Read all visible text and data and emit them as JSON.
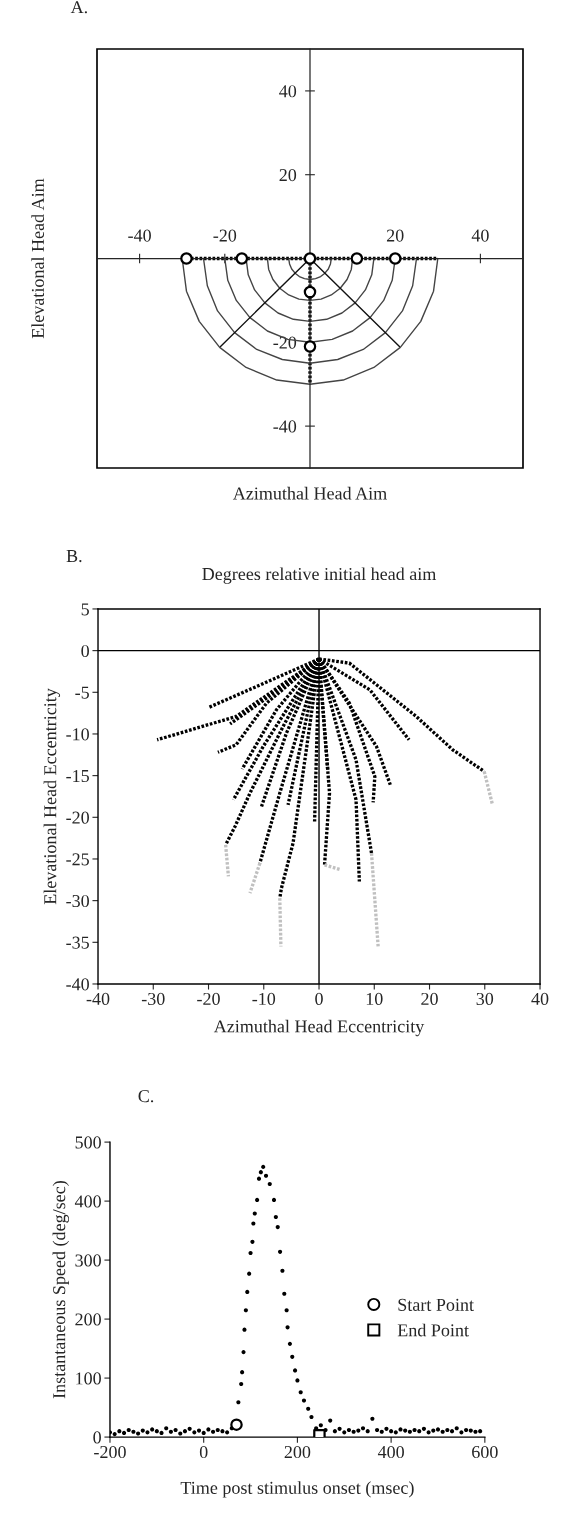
{
  "chart_data": [
    {
      "type": "line",
      "title": "A.",
      "xlabel": "Azimuthal Head Aim",
      "ylabel": "Elevational Head Aim",
      "xlim": [
        -50,
        50
      ],
      "ylim": [
        -50,
        50
      ],
      "xticks": [
        -40,
        -20,
        20,
        40
      ],
      "yticks": [
        -40,
        -20,
        20,
        40
      ],
      "grid": false,
      "legend": false,
      "series": [
        {
          "color": "#000000",
          "line_style": "dotted",
          "x": [
            -30,
            30
          ],
          "values": [
            0,
            0
          ]
        },
        {
          "color": "#000000",
          "line_style": "dotted",
          "x": [
            0,
            0
          ],
          "values": [
            0,
            -30
          ]
        },
        {
          "color": "#444444",
          "x": [
            -5,
            -4.8,
            -4.3,
            -3.5,
            -2.5,
            -1.3,
            0,
            1.3,
            2.5,
            3.5,
            4.3,
            4.8,
            5
          ],
          "values": [
            0,
            -1.3,
            -2.5,
            -3.5,
            -4.3,
            -4.8,
            -5,
            -4.8,
            -4.3,
            -3.5,
            -2.5,
            -1.3,
            0
          ]
        },
        {
          "color": "#444444",
          "x": [
            -10,
            -9.7,
            -8.7,
            -7.1,
            -5,
            -2.6,
            0,
            2.6,
            5,
            7.1,
            8.7,
            9.7,
            10
          ],
          "values": [
            0,
            -2.6,
            -5,
            -7.1,
            -8.7,
            -9.7,
            -10,
            -9.7,
            -8.7,
            -7.1,
            -5,
            -2.6,
            0
          ]
        },
        {
          "color": "#444444",
          "x": [
            -15,
            -14.5,
            -13,
            -10.6,
            -7.5,
            -3.9,
            0,
            3.9,
            7.5,
            10.6,
            13,
            14.5,
            15
          ],
          "values": [
            0,
            -3.9,
            -7.5,
            -10.6,
            -13,
            -14.5,
            -15,
            -14.5,
            -13,
            -10.6,
            -7.5,
            -3.9,
            0
          ]
        },
        {
          "color": "#444444",
          "x": [
            -20,
            -19.3,
            -17.3,
            -14.1,
            -10,
            -5.2,
            0,
            5.2,
            10,
            14.1,
            17.3,
            19.3,
            20
          ],
          "values": [
            0,
            -5.2,
            -10,
            -14.1,
            -17.3,
            -19.3,
            -20,
            -19.3,
            -17.3,
            -14.1,
            -10,
            -5.2,
            0
          ]
        },
        {
          "color": "#444444",
          "x": [
            -25,
            -24.1,
            -21.7,
            -17.7,
            -12.5,
            -6.5,
            0,
            6.5,
            12.5,
            17.7,
            21.7,
            24.1,
            25
          ],
          "values": [
            0,
            -6.5,
            -12.5,
            -17.7,
            -21.7,
            -24.1,
            -25,
            -24.1,
            -21.7,
            -17.7,
            -12.5,
            -6.5,
            0
          ]
        },
        {
          "color": "#444444",
          "x": [
            -30,
            -29,
            -26,
            -21.2,
            -15,
            -7.8,
            0,
            7.8,
            15,
            21.2,
            26,
            29,
            30
          ],
          "values": [
            0,
            -7.8,
            -15,
            -21.2,
            -26,
            -29,
            -30,
            -29,
            -26,
            -21.2,
            -15,
            -7.8,
            0
          ]
        },
        {
          "color": "#111111",
          "x": [
            0,
            -21
          ],
          "values": [
            0,
            -21
          ]
        },
        {
          "color": "#111111",
          "x": [
            0,
            21
          ],
          "values": [
            0,
            -21
          ]
        },
        {
          "type": "scatter",
          "marker": "circle",
          "color": "#000000",
          "x": [
            -29,
            -16,
            0,
            11,
            20,
            0,
            0
          ],
          "values": [
            0,
            0,
            0,
            0,
            0,
            -8,
            -21
          ]
        }
      ]
    },
    {
      "type": "line",
      "title": "B.",
      "subtitle": "Degrees relative initial head aim",
      "xlabel": "Azimuthal Head Eccentricity",
      "ylabel": "Elevational Head Eccentricity",
      "xlim": [
        -40,
        40
      ],
      "ylim": [
        -40,
        5
      ],
      "xticks": [
        -40,
        -30,
        -20,
        -10,
        0,
        10,
        20,
        30,
        40
      ],
      "yticks": [
        5,
        0,
        -5,
        -10,
        -15,
        -20,
        -25,
        -30,
        -35,
        -40
      ],
      "grid": false,
      "legend": false,
      "line_style": "dotted",
      "series": [
        {
          "color": "#000000",
          "line_style": "solid",
          "x": [
            0,
            0
          ],
          "values": [
            5,
            -40
          ]
        },
        {
          "color": "#000000",
          "line_style": "solid",
          "x": [
            -40,
            40
          ],
          "values": [
            0,
            0
          ]
        },
        {
          "color": "#000000",
          "x": [
            0,
            -15,
            -29.3
          ],
          "values": [
            -1,
            -7.9,
            -10.7
          ]
        },
        {
          "color": "#000000",
          "x": [
            0,
            -11.3,
            -19.9
          ],
          "values": [
            -1,
            -4.3,
            -6.8
          ]
        },
        {
          "color": "#000000",
          "x": [
            0,
            -8,
            -16.1
          ],
          "values": [
            -1,
            -5,
            -8.8
          ]
        },
        {
          "color": "#000000",
          "x": [
            0,
            -9.5,
            -15,
            -18.3
          ],
          "values": [
            -1,
            -6.3,
            -11.3,
            -12.2
          ]
        },
        {
          "color": "#000000",
          "x": [
            0,
            -7.7,
            -13.9
          ],
          "values": [
            -1,
            -7.1,
            -14.2
          ]
        },
        {
          "color": "#000000",
          "x": [
            0,
            -10.1,
            -15.5
          ],
          "values": [
            -1,
            -11.5,
            -17.9
          ]
        },
        {
          "color": "#000000",
          "x": [
            0,
            -6.5,
            -12.5,
            -15.2,
            -16.9
          ],
          "values": [
            -1,
            -9.1,
            -17.1,
            -21.1,
            -23.3
          ]
        },
        {
          "color": "#000000",
          "x": [
            0,
            -5.9,
            -10.4
          ],
          "values": [
            -1,
            -9.9,
            -18.7
          ]
        },
        {
          "color": "#000000",
          "x": [
            0,
            -5.6
          ],
          "values": [
            -1,
            -18.5
          ]
        },
        {
          "color": "#000000",
          "x": [
            0,
            -7.1,
            -10.7
          ],
          "values": [
            -1,
            -17.1,
            -25.5
          ]
        },
        {
          "color": "#000000",
          "x": [
            0,
            -1.7,
            -4.7,
            -6.8,
            -7.1
          ],
          "values": [
            -1,
            -9.1,
            -23.1,
            -28.5,
            -29.7
          ]
        },
        {
          "color": "#000000",
          "x": [
            0,
            -0.8
          ],
          "values": [
            -1,
            -20.5
          ]
        },
        {
          "color": "#000000",
          "x": [
            0,
            1.6
          ],
          "values": [
            -1,
            -14.5
          ]
        },
        {
          "color": "#000000",
          "x": [
            0,
            1.9,
            1.0
          ],
          "values": [
            -1,
            -17.1,
            -25.7
          ]
        },
        {
          "color": "#000000",
          "x": [
            0,
            6.7,
            7.3
          ],
          "values": [
            -1,
            -17.9,
            -27.7
          ]
        },
        {
          "color": "#000000",
          "x": [
            0,
            6.7,
            9.5
          ],
          "values": [
            -1,
            -13.1,
            -24.3
          ]
        },
        {
          "color": "#000000",
          "x": [
            0,
            5.5,
            10.1,
            9.8
          ],
          "values": [
            -1,
            -6.3,
            -15.1,
            -18.2
          ]
        },
        {
          "color": "#000000",
          "x": [
            0,
            10.4,
            12.9
          ],
          "values": [
            -1,
            -11.5,
            -16.1
          ]
        },
        {
          "color": "#000000",
          "x": [
            0,
            9.2,
            16.3
          ],
          "values": [
            -1,
            -4.7,
            -10.7
          ]
        },
        {
          "color": "#000000",
          "x": [
            0,
            5.5,
            17.6,
            24.2,
            29.9
          ],
          "values": [
            -1,
            -1.5,
            -7.9,
            -11.9,
            -14.5
          ]
        },
        {
          "color": "#c0c0c0",
          "x": [
            -16.9,
            -16.4
          ],
          "values": [
            -23.3,
            -27.1
          ]
        },
        {
          "color": "#c0c0c0",
          "x": [
            -10.7,
            -12.5
          ],
          "values": [
            -25.5,
            -29.1
          ]
        },
        {
          "color": "#c0c0c0",
          "x": [
            -7.1,
            -6.9
          ],
          "values": [
            -29.7,
            -35.5
          ]
        },
        {
          "color": "#c0c0c0",
          "x": [
            1.0,
            4.0
          ],
          "values": [
            -25.7,
            -26.3
          ]
        },
        {
          "color": "#c0c0c0",
          "x": [
            9.5,
            10.7
          ],
          "values": [
            -24.3,
            -35.5
          ]
        },
        {
          "color": "#c0c0c0",
          "x": [
            29.9,
            31.4
          ],
          "values": [
            -14.5,
            -18.5
          ]
        }
      ]
    },
    {
      "type": "scatter",
      "title": "C.",
      "xlabel": "Time post stimulus onset (msec)",
      "ylabel": "Instantaneous Speed (deg/sec)",
      "xlim": [
        -200,
        600
      ],
      "ylim": [
        0,
        500
      ],
      "xticks": [
        -200,
        0,
        200,
        400,
        600
      ],
      "yticks": [
        0,
        100,
        200,
        300,
        400,
        500
      ],
      "grid": false,
      "legend": "right",
      "marker": "circle",
      "series": [
        {
          "color": "#000000",
          "x": [
            -200,
            -190,
            -180,
            -170,
            -160,
            -150,
            -140,
            -130,
            -120,
            -110,
            -100,
            -90,
            -80,
            -70,
            -60,
            -50,
            -40,
            -30,
            -20,
            -10,
            0,
            10,
            20,
            30,
            40,
            50,
            60,
            74,
            80,
            82,
            85,
            87,
            90,
            93,
            97,
            100,
            104,
            106,
            109,
            114,
            118,
            122,
            127,
            133,
            141,
            150,
            154,
            158,
            163,
            168,
            172,
            177,
            179,
            184,
            189,
            195,
            200,
            207,
            214,
            223,
            230,
            240,
            250,
            260,
            270,
            280,
            290,
            300,
            310,
            320,
            330,
            340,
            350,
            360,
            370,
            380,
            390,
            400,
            410,
            420,
            430,
            440,
            450,
            460,
            470,
            480,
            490,
            500,
            510,
            520,
            530,
            540,
            550,
            560,
            570,
            580,
            590
          ],
          "values": [
            8,
            5,
            10,
            7,
            12,
            9,
            6,
            11,
            8,
            13,
            10,
            7,
            15,
            9,
            12,
            6,
            10,
            14,
            8,
            11,
            7,
            13,
            9,
            12,
            10,
            8,
            15,
            59,
            90,
            110,
            144,
            182,
            215,
            246,
            277,
            312,
            331,
            362,
            379,
            402,
            438,
            449,
            458,
            443,
            429,
            402,
            373,
            356,
            314,
            282,
            243,
            215,
            186,
            158,
            136,
            113,
            96,
            76,
            62,
            48,
            34,
            15,
            20,
            12,
            28,
            10,
            14,
            8,
            12,
            9,
            11,
            15,
            10,
            31,
            12,
            9,
            14,
            10,
            8,
            13,
            11,
            9,
            12,
            10,
            14,
            8,
            11,
            13,
            9,
            12,
            10,
            15,
            8,
            12,
            11,
            9,
            10
          ]
        },
        {
          "name": "Start Point",
          "marker": "circle",
          "color": "#000000",
          "x": [
            70
          ],
          "values": [
            21
          ]
        },
        {
          "name": "End Point",
          "marker": "square",
          "color": "#000000",
          "x": [
            247
          ],
          "values": [
            3
          ]
        }
      ]
    }
  ]
}
